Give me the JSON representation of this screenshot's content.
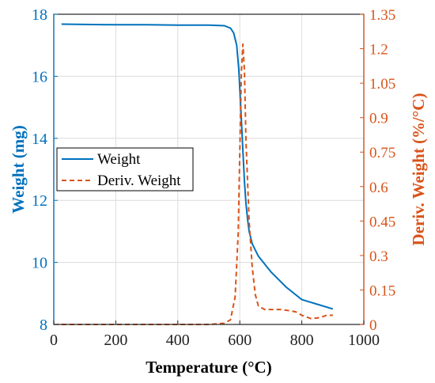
{
  "chart_data": {
    "type": "line",
    "title": "",
    "xlabel": "Temperature (°C)",
    "ylabel_left": "Weight (mg)",
    "ylabel_right": "Deriv. Weight (%/°C)",
    "xlim": [
      0,
      1000
    ],
    "ylim_left": [
      8,
      18
    ],
    "ylim_right": [
      0,
      1.35
    ],
    "x_ticks": [
      "0",
      "200",
      "400",
      "600",
      "800",
      "1000"
    ],
    "y_left_ticks": [
      "8",
      "10",
      "12",
      "14",
      "16",
      "18"
    ],
    "y_right_ticks": [
      "0",
      "0.15",
      "0.3",
      "0.45",
      "0.6",
      "0.75",
      "0.9",
      "1.05",
      "1.2",
      "1.35"
    ],
    "grid": true,
    "legend_position": "center-left",
    "colors": {
      "weight": "#0072BD",
      "deriv": "#D95319"
    },
    "series": [
      {
        "name": "Weight",
        "axis": "left",
        "style": "solid",
        "x": [
          25,
          100,
          200,
          300,
          400,
          500,
          550,
          570,
          580,
          590,
          597,
          603,
          610,
          615,
          620,
          625,
          630,
          640,
          660,
          700,
          750,
          800,
          850,
          900
        ],
        "y": [
          17.68,
          17.67,
          17.66,
          17.66,
          17.65,
          17.65,
          17.63,
          17.55,
          17.4,
          17.0,
          16.2,
          15.0,
          13.6,
          12.6,
          11.9,
          11.4,
          11.0,
          10.6,
          10.2,
          9.7,
          9.2,
          8.8,
          8.65,
          8.5
        ]
      },
      {
        "name": "Deriv. Weight",
        "axis": "right",
        "style": "dashed",
        "x": [
          0,
          100,
          200,
          300,
          400,
          500,
          550,
          570,
          585,
          595,
          600,
          605,
          610,
          615,
          620,
          630,
          640,
          650,
          660,
          680,
          700,
          730,
          760,
          780,
          800,
          830,
          860,
          880,
          900
        ],
        "y": [
          0.0,
          0.0,
          0.0,
          0.0,
          0.0,
          0.0,
          0.005,
          0.02,
          0.12,
          0.4,
          0.75,
          1.1,
          1.22,
          1.1,
          0.8,
          0.45,
          0.25,
          0.13,
          0.08,
          0.065,
          0.065,
          0.065,
          0.06,
          0.055,
          0.04,
          0.025,
          0.03,
          0.04,
          0.04
        ]
      }
    ]
  }
}
